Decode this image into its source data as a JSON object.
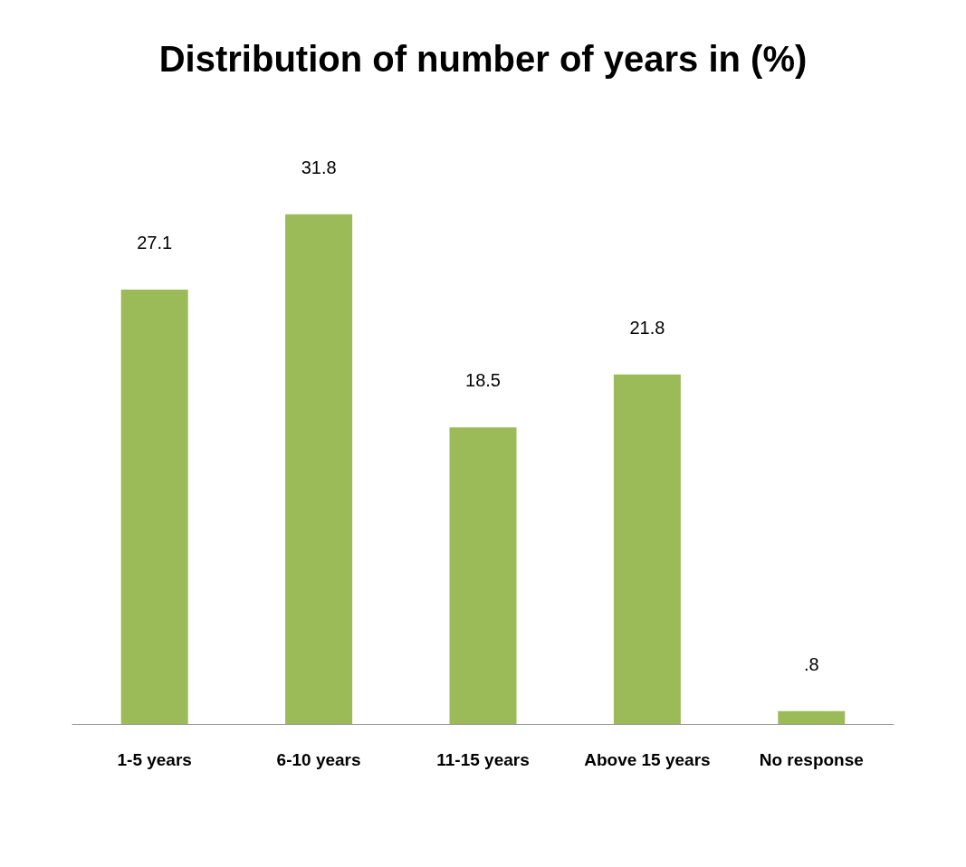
{
  "chart_data": {
    "type": "bar",
    "title": "Distribution of number of years in (%)",
    "categories": [
      "1-5 years",
      "6-10 years",
      "11-15 years",
      "Above 15 years",
      "No response"
    ],
    "values": [
      27.1,
      31.8,
      18.5,
      21.8,
      0.8
    ],
    "value_labels": [
      "27.1",
      "31.8",
      "18.5",
      "21.8",
      ".8"
    ],
    "color": "#9bbb59"
  }
}
